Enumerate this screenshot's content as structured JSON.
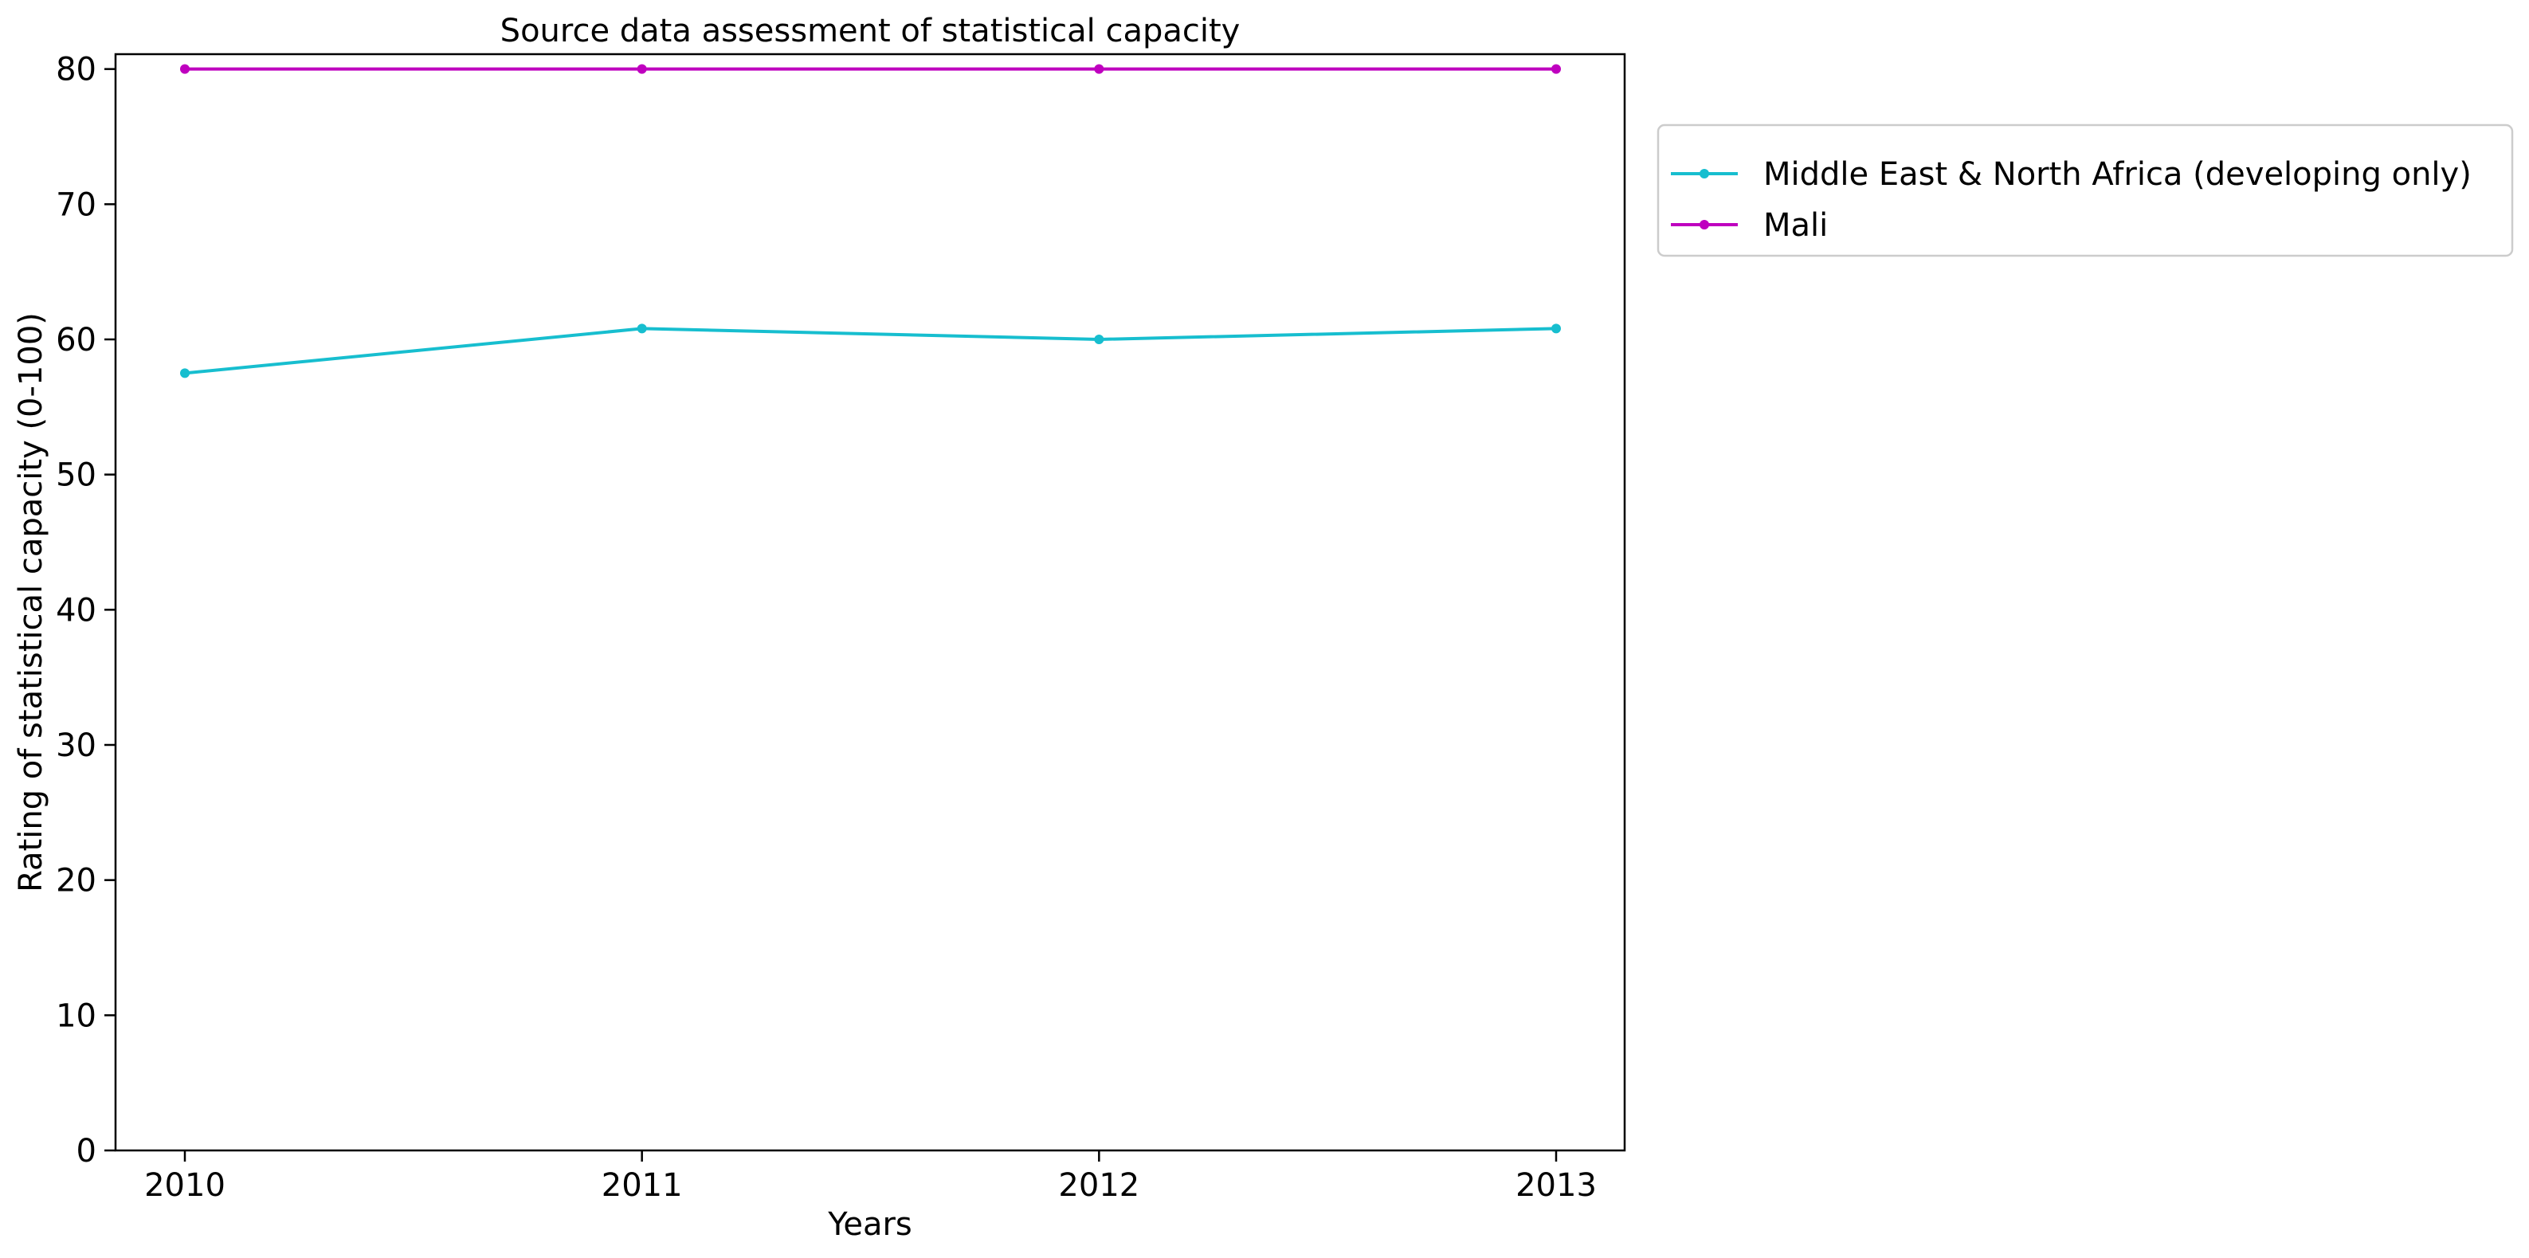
{
  "chart_data": {
    "type": "line",
    "title": "Source data assessment of statistical capacity",
    "xlabel": "Years",
    "ylabel": "Rating of statistical capacity (0-100)",
    "x": [
      "2010",
      "2011",
      "2012",
      "2013"
    ],
    "ylim": [
      0,
      81.1
    ],
    "yticks": [
      0,
      10,
      20,
      30,
      40,
      50,
      60,
      70,
      80
    ],
    "grid": false,
    "legend_position": "outside-right-top",
    "series": [
      {
        "name": "Middle East & North Africa (developing only)",
        "color": "#17becf",
        "values": [
          57.5,
          60.8,
          60.0,
          60.8
        ]
      },
      {
        "name": "Mali",
        "color": "#bf00bf",
        "values": [
          80,
          80,
          80,
          80
        ]
      }
    ]
  }
}
